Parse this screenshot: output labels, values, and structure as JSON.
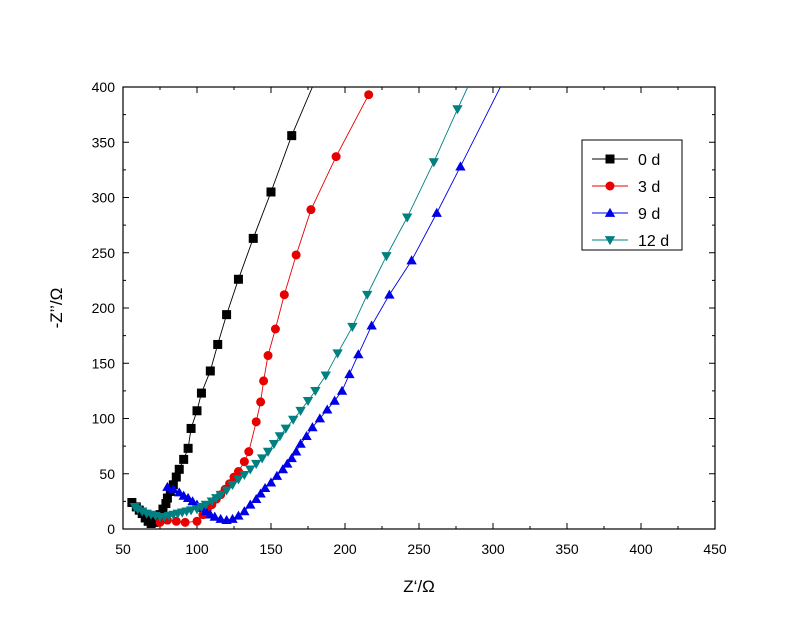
{
  "chart_data": {
    "type": "scatter",
    "title": "",
    "xlabel": "Z‘/Ω",
    "ylabel": "-Z’’/Ω",
    "xlim": [
      50,
      450
    ],
    "ylim": [
      0,
      400
    ],
    "xticks": [
      50,
      100,
      150,
      200,
      250,
      300,
      350,
      400,
      450
    ],
    "yticks": [
      0,
      50,
      100,
      150,
      200,
      250,
      300,
      350,
      400
    ],
    "grid": false,
    "legend_position": "upper-right",
    "series": [
      {
        "name": "0 d",
        "color": "#000000",
        "marker": "square",
        "points": [
          [
            56,
            24
          ],
          [
            59,
            20
          ],
          [
            61,
            17
          ],
          [
            63,
            14
          ],
          [
            65,
            10
          ],
          [
            67,
            7
          ],
          [
            69,
            5
          ],
          [
            71,
            6
          ],
          [
            73,
            9
          ],
          [
            75,
            13
          ],
          [
            77,
            18
          ],
          [
            79,
            23
          ],
          [
            80,
            28
          ],
          [
            82,
            34
          ],
          [
            84,
            40
          ],
          [
            86,
            47
          ],
          [
            88,
            54
          ],
          [
            91,
            63
          ],
          [
            94,
            73
          ],
          [
            96,
            91
          ],
          [
            100,
            107
          ],
          [
            103,
            123
          ],
          [
            109,
            143
          ],
          [
            114,
            167
          ],
          [
            120,
            194
          ],
          [
            128,
            226
          ],
          [
            138,
            263
          ],
          [
            150,
            305
          ],
          [
            164,
            356
          ]
        ],
        "line_extension": [
          [
            178,
            400
          ]
        ]
      },
      {
        "name": "3 d",
        "color": "#e60000",
        "marker": "circle",
        "points": [
          [
            75,
            6
          ],
          [
            80,
            8
          ],
          [
            86,
            7
          ],
          [
            92,
            6
          ],
          [
            100,
            7
          ],
          [
            104,
            13
          ],
          [
            107,
            18
          ],
          [
            110,
            22
          ],
          [
            113,
            27
          ],
          [
            116,
            31
          ],
          [
            119,
            36
          ],
          [
            122,
            41
          ],
          [
            125,
            47
          ],
          [
            128,
            52
          ],
          [
            132,
            61
          ],
          [
            135,
            70
          ],
          [
            140,
            97
          ],
          [
            143,
            115
          ],
          [
            145,
            134
          ],
          [
            148,
            157
          ],
          [
            153,
            181
          ],
          [
            159,
            212
          ],
          [
            167,
            248
          ],
          [
            177,
            289
          ],
          [
            194,
            337
          ],
          [
            216,
            393
          ]
        ],
        "line_extension": []
      },
      {
        "name": "9 d",
        "color": "#0000e6",
        "marker": "triangle-up",
        "points": [
          [
            80,
            38
          ],
          [
            84,
            36
          ],
          [
            88,
            33
          ],
          [
            91,
            30
          ],
          [
            94,
            28
          ],
          [
            97,
            25
          ],
          [
            100,
            22
          ],
          [
            103,
            19
          ],
          [
            106,
            16
          ],
          [
            109,
            13
          ],
          [
            112,
            11
          ],
          [
            116,
            9
          ],
          [
            120,
            8
          ],
          [
            124,
            9
          ],
          [
            128,
            12
          ],
          [
            132,
            16
          ],
          [
            136,
            22
          ],
          [
            140,
            27
          ],
          [
            143,
            32
          ],
          [
            146,
            37
          ],
          [
            150,
            42
          ],
          [
            154,
            48
          ],
          [
            158,
            54
          ],
          [
            161,
            59
          ],
          [
            164,
            64
          ],
          [
            167,
            70
          ],
          [
            170,
            77
          ],
          [
            174,
            84
          ],
          [
            178,
            92
          ],
          [
            183,
            100
          ],
          [
            188,
            108
          ],
          [
            193,
            116
          ],
          [
            198,
            125
          ],
          [
            203,
            140
          ],
          [
            209,
            158
          ],
          [
            218,
            184
          ],
          [
            230,
            212
          ],
          [
            245,
            243
          ],
          [
            262,
            286
          ],
          [
            278,
            328
          ]
        ],
        "line_extension": [
          [
            305,
            400
          ]
        ]
      },
      {
        "name": "12 d",
        "color": "#008080",
        "marker": "triangle-down",
        "points": [
          [
            58,
            20
          ],
          [
            60,
            18
          ],
          [
            63,
            16
          ],
          [
            66,
            14
          ],
          [
            69,
            13
          ],
          [
            72,
            12
          ],
          [
            75,
            11
          ],
          [
            78,
            11
          ],
          [
            81,
            12
          ],
          [
            84,
            13
          ],
          [
            87,
            14
          ],
          [
            90,
            15
          ],
          [
            93,
            16
          ],
          [
            96,
            17
          ],
          [
            100,
            18
          ],
          [
            103,
            20
          ],
          [
            106,
            22
          ],
          [
            110,
            25
          ],
          [
            113,
            28
          ],
          [
            116,
            31
          ],
          [
            120,
            35
          ],
          [
            124,
            40
          ],
          [
            128,
            45
          ],
          [
            132,
            49
          ],
          [
            136,
            54
          ],
          [
            140,
            59
          ],
          [
            144,
            64
          ],
          [
            148,
            70
          ],
          [
            152,
            77
          ],
          [
            156,
            84
          ],
          [
            160,
            91
          ],
          [
            165,
            99
          ],
          [
            170,
            107
          ],
          [
            175,
            116
          ],
          [
            180,
            125
          ],
          [
            187,
            139
          ],
          [
            195,
            159
          ],
          [
            205,
            183
          ],
          [
            215,
            212
          ],
          [
            228,
            247
          ],
          [
            242,
            282
          ],
          [
            260,
            332
          ],
          [
            276,
            380
          ]
        ],
        "line_extension": [
          [
            283,
            400
          ]
        ]
      }
    ]
  }
}
